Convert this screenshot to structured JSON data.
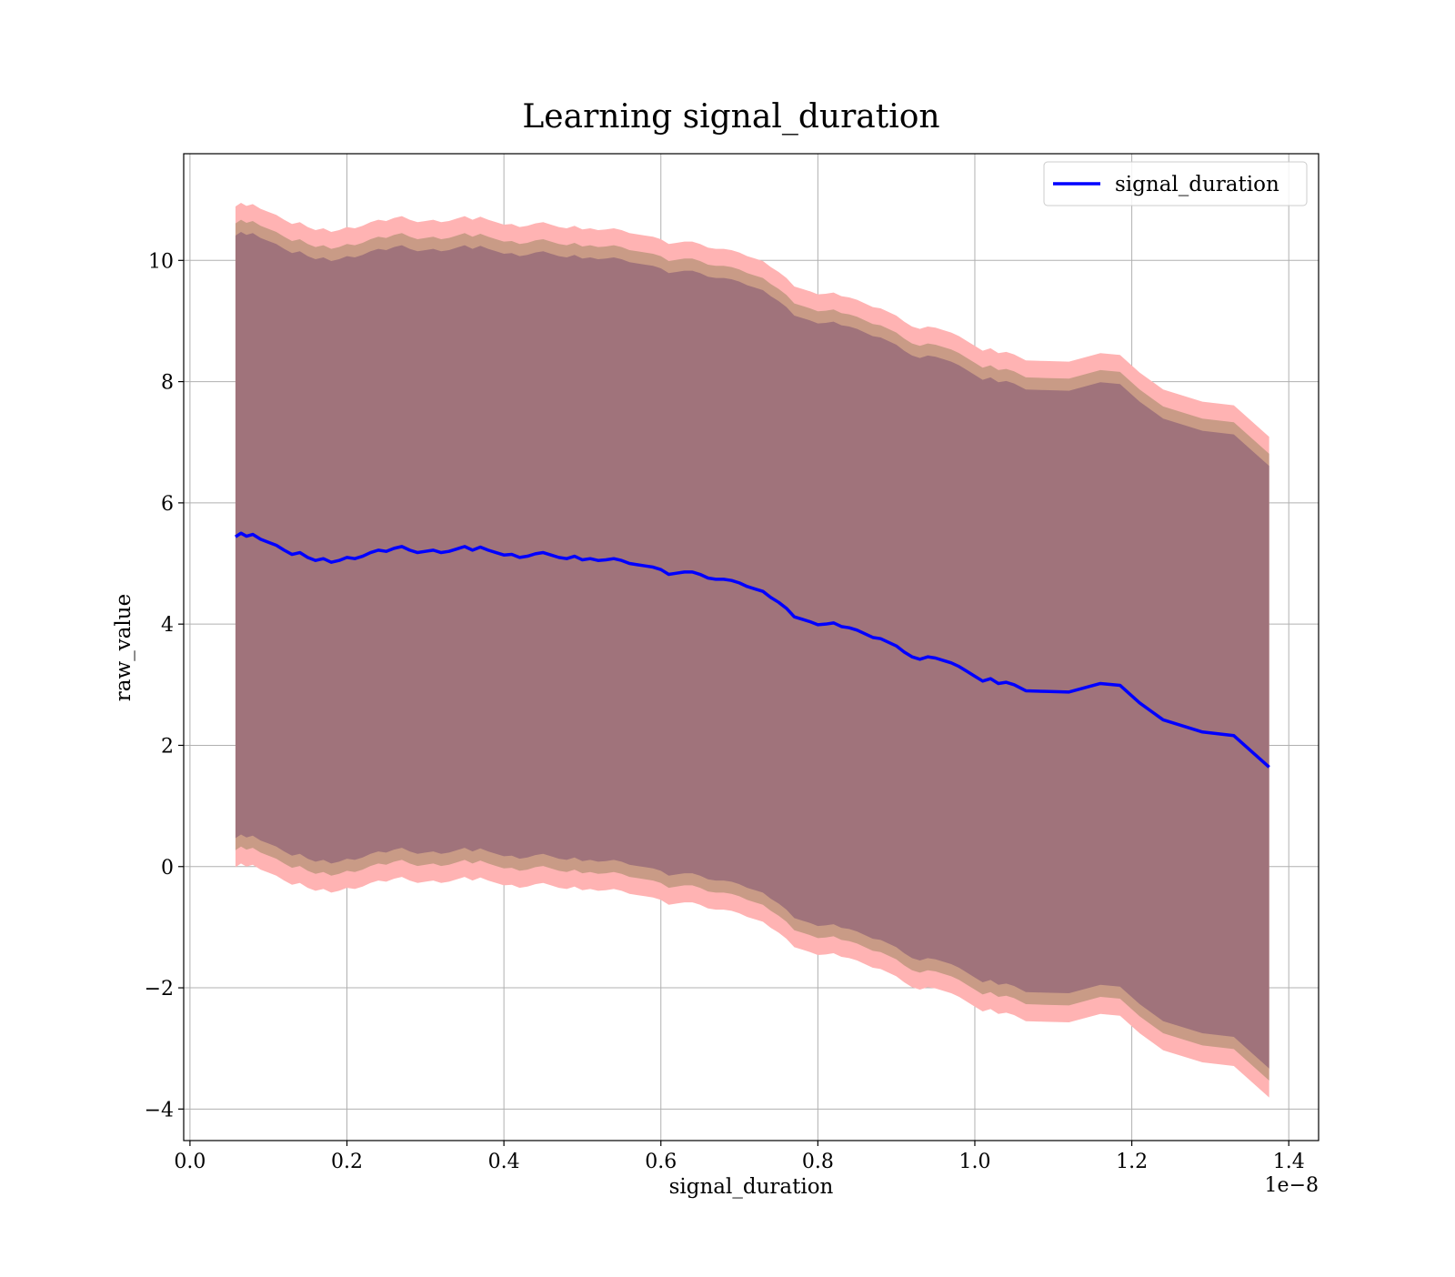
{
  "chart_data": {
    "type": "line",
    "title": "Learning signal_duration",
    "xlabel": "signal_duration",
    "ylabel": "raw_value",
    "x_offset_label": "1e−8",
    "xlim": [
      -0.008,
      1.438
    ],
    "ylim": [
      -4.52,
      11.76
    ],
    "x_ticks": [
      0.0,
      0.2,
      0.4,
      0.6,
      0.8,
      1.0,
      1.2,
      1.4
    ],
    "x_tick_labels": [
      "0.0",
      "0.2",
      "0.4",
      "0.6",
      "0.8",
      "1.0",
      "1.2",
      "1.4"
    ],
    "y_ticks": [
      -4,
      -2,
      0,
      2,
      4,
      6,
      8,
      10
    ],
    "y_tick_labels": [
      "−4",
      "−2",
      "0",
      "2",
      "4",
      "6",
      "8",
      "10"
    ],
    "grid": true,
    "legend": {
      "position": "upper-right",
      "entries": [
        {
          "name": "signal_duration",
          "color": "#0000ff"
        }
      ]
    },
    "colors": {
      "line": "#0000ff",
      "band_outer": "#ffb3b3",
      "band_middle": "#c99b86",
      "band_inner": "#a0737b",
      "grid": "#b0b0b0"
    },
    "series": [
      {
        "name": "signal_duration",
        "x": [
          0.058,
          0.065,
          0.072,
          0.08,
          0.09,
          0.1,
          0.11,
          0.12,
          0.13,
          0.14,
          0.15,
          0.16,
          0.17,
          0.18,
          0.19,
          0.2,
          0.21,
          0.22,
          0.23,
          0.24,
          0.25,
          0.26,
          0.27,
          0.28,
          0.29,
          0.3,
          0.31,
          0.32,
          0.33,
          0.34,
          0.35,
          0.36,
          0.37,
          0.38,
          0.39,
          0.4,
          0.41,
          0.42,
          0.43,
          0.44,
          0.45,
          0.46,
          0.47,
          0.48,
          0.49,
          0.5,
          0.51,
          0.52,
          0.53,
          0.54,
          0.55,
          0.56,
          0.57,
          0.58,
          0.59,
          0.6,
          0.61,
          0.62,
          0.63,
          0.64,
          0.65,
          0.66,
          0.67,
          0.68,
          0.69,
          0.7,
          0.71,
          0.72,
          0.73,
          0.74,
          0.75,
          0.76,
          0.77,
          0.78,
          0.79,
          0.8,
          0.81,
          0.82,
          0.83,
          0.84,
          0.85,
          0.86,
          0.87,
          0.88,
          0.89,
          0.9,
          0.91,
          0.92,
          0.93,
          0.94,
          0.95,
          0.96,
          0.97,
          0.98,
          0.99,
          1.0,
          1.01,
          1.02,
          1.03,
          1.04,
          1.05,
          1.065,
          1.09,
          1.12,
          1.16,
          1.185,
          1.21,
          1.24,
          1.29,
          1.33,
          1.375
        ],
        "y": [
          5.44,
          5.5,
          5.45,
          5.48,
          5.4,
          5.35,
          5.3,
          5.22,
          5.15,
          5.18,
          5.1,
          5.05,
          5.08,
          5.02,
          5.05,
          5.1,
          5.08,
          5.12,
          5.18,
          5.22,
          5.2,
          5.25,
          5.28,
          5.22,
          5.18,
          5.2,
          5.22,
          5.18,
          5.2,
          5.24,
          5.28,
          5.22,
          5.27,
          5.22,
          5.18,
          5.14,
          5.15,
          5.1,
          5.12,
          5.16,
          5.18,
          5.14,
          5.1,
          5.08,
          5.12,
          5.06,
          5.08,
          5.05,
          5.06,
          5.08,
          5.05,
          5.0,
          4.98,
          4.96,
          4.94,
          4.9,
          4.82,
          4.84,
          4.86,
          4.86,
          4.82,
          4.76,
          4.74,
          4.74,
          4.72,
          4.68,
          4.62,
          4.58,
          4.54,
          4.44,
          4.36,
          4.26,
          4.12,
          4.08,
          4.04,
          3.99,
          4.0,
          4.02,
          3.96,
          3.94,
          3.9,
          3.84,
          3.78,
          3.76,
          3.7,
          3.64,
          3.54,
          3.46,
          3.42,
          3.46,
          3.44,
          3.4,
          3.36,
          3.3,
          3.22,
          3.14,
          3.06,
          3.1,
          3.02,
          3.04,
          3.0,
          2.9,
          2.89,
          2.88,
          3.02,
          2.99,
          2.7,
          2.42,
          2.22,
          2.16,
          1.64
        ]
      }
    ],
    "bands": [
      {
        "role": "outer",
        "offset": 5.45
      },
      {
        "role": "middle",
        "offset": 5.17
      },
      {
        "role": "inner",
        "offset": 4.97
      }
    ]
  }
}
